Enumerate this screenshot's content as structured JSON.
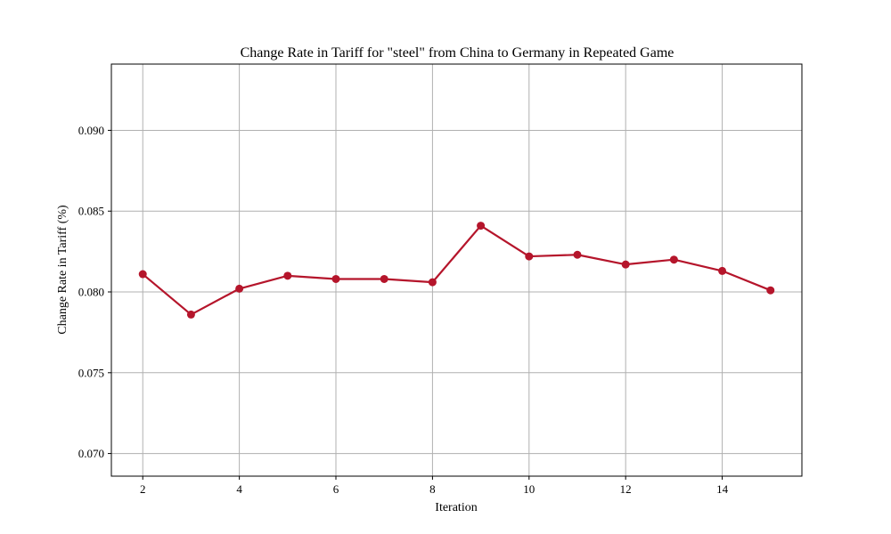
{
  "chart_data": {
    "type": "line",
    "title": "Change Rate in Tariff for \"steel\" from China to Germany in Repeated Game",
    "xlabel": "Iteration",
    "ylabel": "Change Rate in Tariff (%)",
    "xlim": [
      1.35,
      15.65
    ],
    "ylim": [
      0.0686,
      0.0941
    ],
    "x_ticks": [
      2,
      4,
      6,
      8,
      10,
      12,
      14
    ],
    "x_tick_labels": [
      "2",
      "4",
      "6",
      "8",
      "10",
      "12",
      "14"
    ],
    "y_ticks": [
      0.07,
      0.075,
      0.08,
      0.085,
      0.09
    ],
    "y_tick_labels": [
      "0.070",
      "0.075",
      "0.080",
      "0.085",
      "0.090"
    ],
    "grid": true,
    "series": [
      {
        "color": "#b5152b",
        "marker": "circle",
        "x": [
          2,
          3,
          4,
          5,
          6,
          7,
          8,
          9,
          10,
          11,
          12,
          13,
          14,
          15
        ],
        "values": [
          0.0811,
          0.0786,
          0.0802,
          0.081,
          0.0808,
          0.0808,
          0.0806,
          0.0841,
          0.0822,
          0.0823,
          0.0817,
          0.082,
          0.0813,
          0.0801
        ]
      }
    ]
  }
}
